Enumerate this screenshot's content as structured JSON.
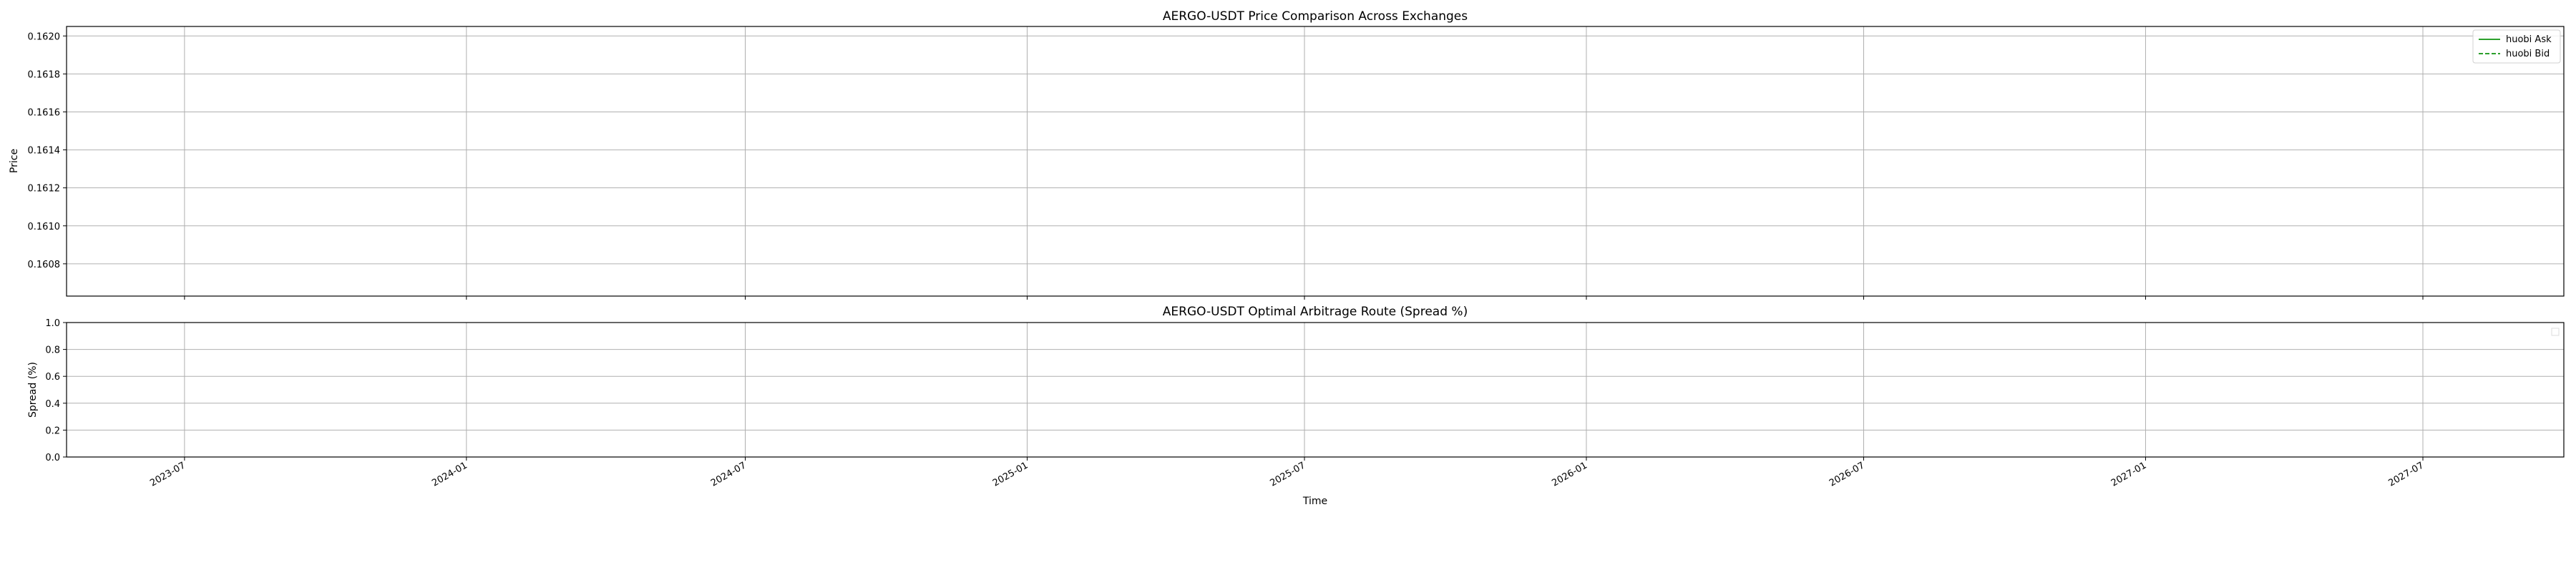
{
  "chart_data": [
    {
      "type": "line",
      "title": "AERGO-USDT Price Comparison Across Exchanges",
      "xlabel": "",
      "ylabel": "Price",
      "ylim": [
        0.16063,
        0.16205
      ],
      "y_ticks": [
        "0.1608",
        "0.1610",
        "0.1612",
        "0.1614",
        "0.1616",
        "0.1618",
        "0.1620"
      ],
      "y_tick_values": [
        0.1608,
        0.161,
        0.1612,
        0.1614,
        0.1616,
        0.1618,
        0.162
      ],
      "xlim": [
        "2023-04-15",
        "2027-10-01"
      ],
      "x_ticks": [
        "2023-07",
        "2024-01",
        "2024-07",
        "2025-01",
        "2025-07",
        "2026-01",
        "2026-07",
        "2027-01",
        "2027-07"
      ],
      "x_tick_values": [
        "2023-07-01",
        "2024-01-01",
        "2024-07-01",
        "2025-01-01",
        "2025-07-01",
        "2026-01-01",
        "2026-07-01",
        "2027-01-01",
        "2027-07-01"
      ],
      "grid": true,
      "legend_position": "top-right",
      "series": [
        {
          "name": "huobi Ask",
          "color": "#2ca02c",
          "dash": "solid",
          "values": []
        },
        {
          "name": "huobi Bid",
          "color": "#2ca02c",
          "dash": "dashed",
          "values": []
        }
      ]
    },
    {
      "type": "line",
      "title": "AERGO-USDT Optimal Arbitrage Route (Spread %)",
      "xlabel": "Time",
      "ylabel": "Spread (%)",
      "ylim": [
        0.0,
        1.0
      ],
      "y_ticks": [
        "0.0",
        "0.2",
        "0.4",
        "0.6",
        "0.8",
        "1.0"
      ],
      "y_tick_values": [
        0.0,
        0.2,
        0.4,
        0.6,
        0.8,
        1.0
      ],
      "xlim": [
        "2023-04-15",
        "2027-10-01"
      ],
      "x_ticks": [
        "2023-07",
        "2024-01",
        "2024-07",
        "2025-01",
        "2025-07",
        "2026-01",
        "2026-07",
        "2027-01",
        "2027-07"
      ],
      "x_tick_values": [
        "2023-07-01",
        "2024-01-01",
        "2024-07-01",
        "2025-01-01",
        "2025-07-01",
        "2026-01-01",
        "2026-07-01",
        "2027-01-01",
        "2027-07-01"
      ],
      "grid": true,
      "legend_position": "top-right",
      "series": []
    }
  ]
}
